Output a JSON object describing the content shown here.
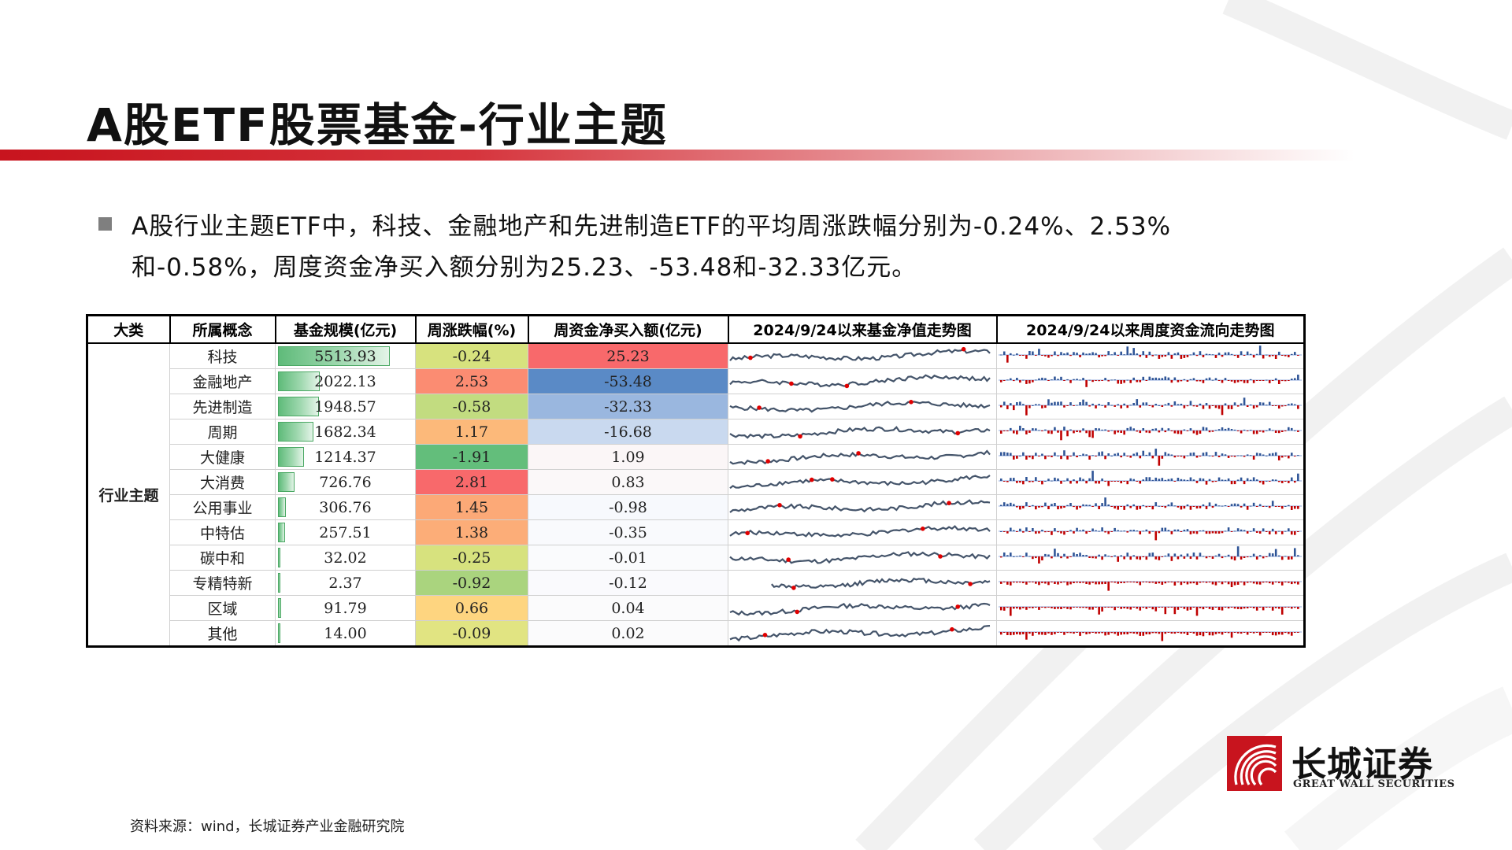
{
  "title": "A股ETF股票基金-行业主题",
  "bullet": "A股行业主题ETF中，科技、金融地产和先进制造ETF的平均周涨跌幅分别为-0.24%、2.53%和-0.58%，周度资金净买入额分别为25.23、-53.48和-32.33亿元。",
  "table": {
    "headers": [
      "大类",
      "所属概念",
      "基金规模(亿元)",
      "周涨跌幅(%)",
      "周资金净买入额(亿元)",
      "2024/9/24以来基金净值走势图",
      "2024/9/24以来周度资金流向走势图"
    ],
    "category": "行业主题",
    "rows": [
      {
        "concept": "科技",
        "scale": "5513.93",
        "scale_num": 5513.93,
        "chg": "-0.24",
        "flow": "25.23",
        "chg_color": "#d7e27e",
        "flow_color": "#f8696b",
        "spark_high": 0.9,
        "flow_pattern": 1
      },
      {
        "concept": "金融地产",
        "scale": "2022.13",
        "scale_num": 2022.13,
        "chg": "2.53",
        "flow": "-53.48",
        "chg_color": "#fb8c72",
        "flow_color": "#5a8ac6",
        "spark_high": 0.45,
        "flow_pattern": 2
      },
      {
        "concept": "先进制造",
        "scale": "1948.57",
        "scale_num": 1948.57,
        "chg": "-0.58",
        "flow": "-32.33",
        "chg_color": "#c2dc80",
        "flow_color": "#9ab7df",
        "spark_high": 0.7,
        "flow_pattern": 3
      },
      {
        "concept": "周期",
        "scale": "1682.34",
        "scale_num": 1682.34,
        "chg": "1.17",
        "flow": "-16.68",
        "chg_color": "#fcb97a",
        "flow_color": "#c9d9ef",
        "spark_high": 0.88,
        "flow_pattern": 4
      },
      {
        "concept": "大健康",
        "scale": "1214.37",
        "scale_num": 1214.37,
        "chg": "-1.91",
        "flow": "1.09",
        "chg_color": "#63be7b",
        "flow_color": "#fbf6f7",
        "spark_high": 0.5,
        "flow_pattern": 5
      },
      {
        "concept": "大消费",
        "scale": "726.76",
        "scale_num": 726.76,
        "chg": "2.81",
        "flow": "0.83",
        "chg_color": "#f8696b",
        "flow_color": "#fbf8f9",
        "spark_high": 0.4,
        "flow_pattern": 6
      },
      {
        "concept": "公用事业",
        "scale": "306.76",
        "scale_num": 306.76,
        "chg": "1.45",
        "flow": "-0.98",
        "chg_color": "#fca977",
        "flow_color": "#f7f9fd",
        "spark_high": 0.85,
        "flow_pattern": 7
      },
      {
        "concept": "中特估",
        "scale": "257.51",
        "scale_num": 257.51,
        "chg": "1.38",
        "flow": "-0.35",
        "chg_color": "#fcad78",
        "flow_color": "#f9fafd",
        "spark_high": 0.75,
        "flow_pattern": 8
      },
      {
        "concept": "碳中和",
        "scale": "32.02",
        "scale_num": 32.02,
        "chg": "-0.25",
        "flow": "-0.01",
        "chg_color": "#d7e27e",
        "flow_color": "#fafbfd",
        "spark_high": 0.82,
        "flow_pattern": 9
      },
      {
        "concept": "专精特新",
        "scale": "2.37",
        "scale_num": 2.37,
        "chg": "-0.92",
        "flow": "-0.12",
        "chg_color": "#aad47e",
        "flow_color": "#fafafd",
        "spark_high": 0.92,
        "flow_pattern": 10
      },
      {
        "concept": "区域",
        "scale": "91.79",
        "scale_num": 91.79,
        "chg": "0.66",
        "flow": "0.04",
        "chg_color": "#fed580",
        "flow_color": "#fbfbfc",
        "spark_high": 0.88,
        "flow_pattern": 11
      },
      {
        "concept": "其他",
        "scale": "14.00",
        "scale_num": 14.0,
        "chg": "-0.09",
        "flow": "0.02",
        "chg_color": "#e1e482",
        "flow_color": "#fbfbfc",
        "spark_high": 0.86,
        "flow_pattern": 12
      }
    ]
  },
  "colors": {
    "brand_red": "#c8141e",
    "spark_line": "#44546a",
    "spark_marker": "#e00000",
    "flow_pos": "#2f5597",
    "flow_neg": "#c00000"
  },
  "source": "资料来源：wind，长城证券产业金融研究院",
  "logo": {
    "cn": "长城证券",
    "en": "GREAT WALL SECURITIES"
  }
}
